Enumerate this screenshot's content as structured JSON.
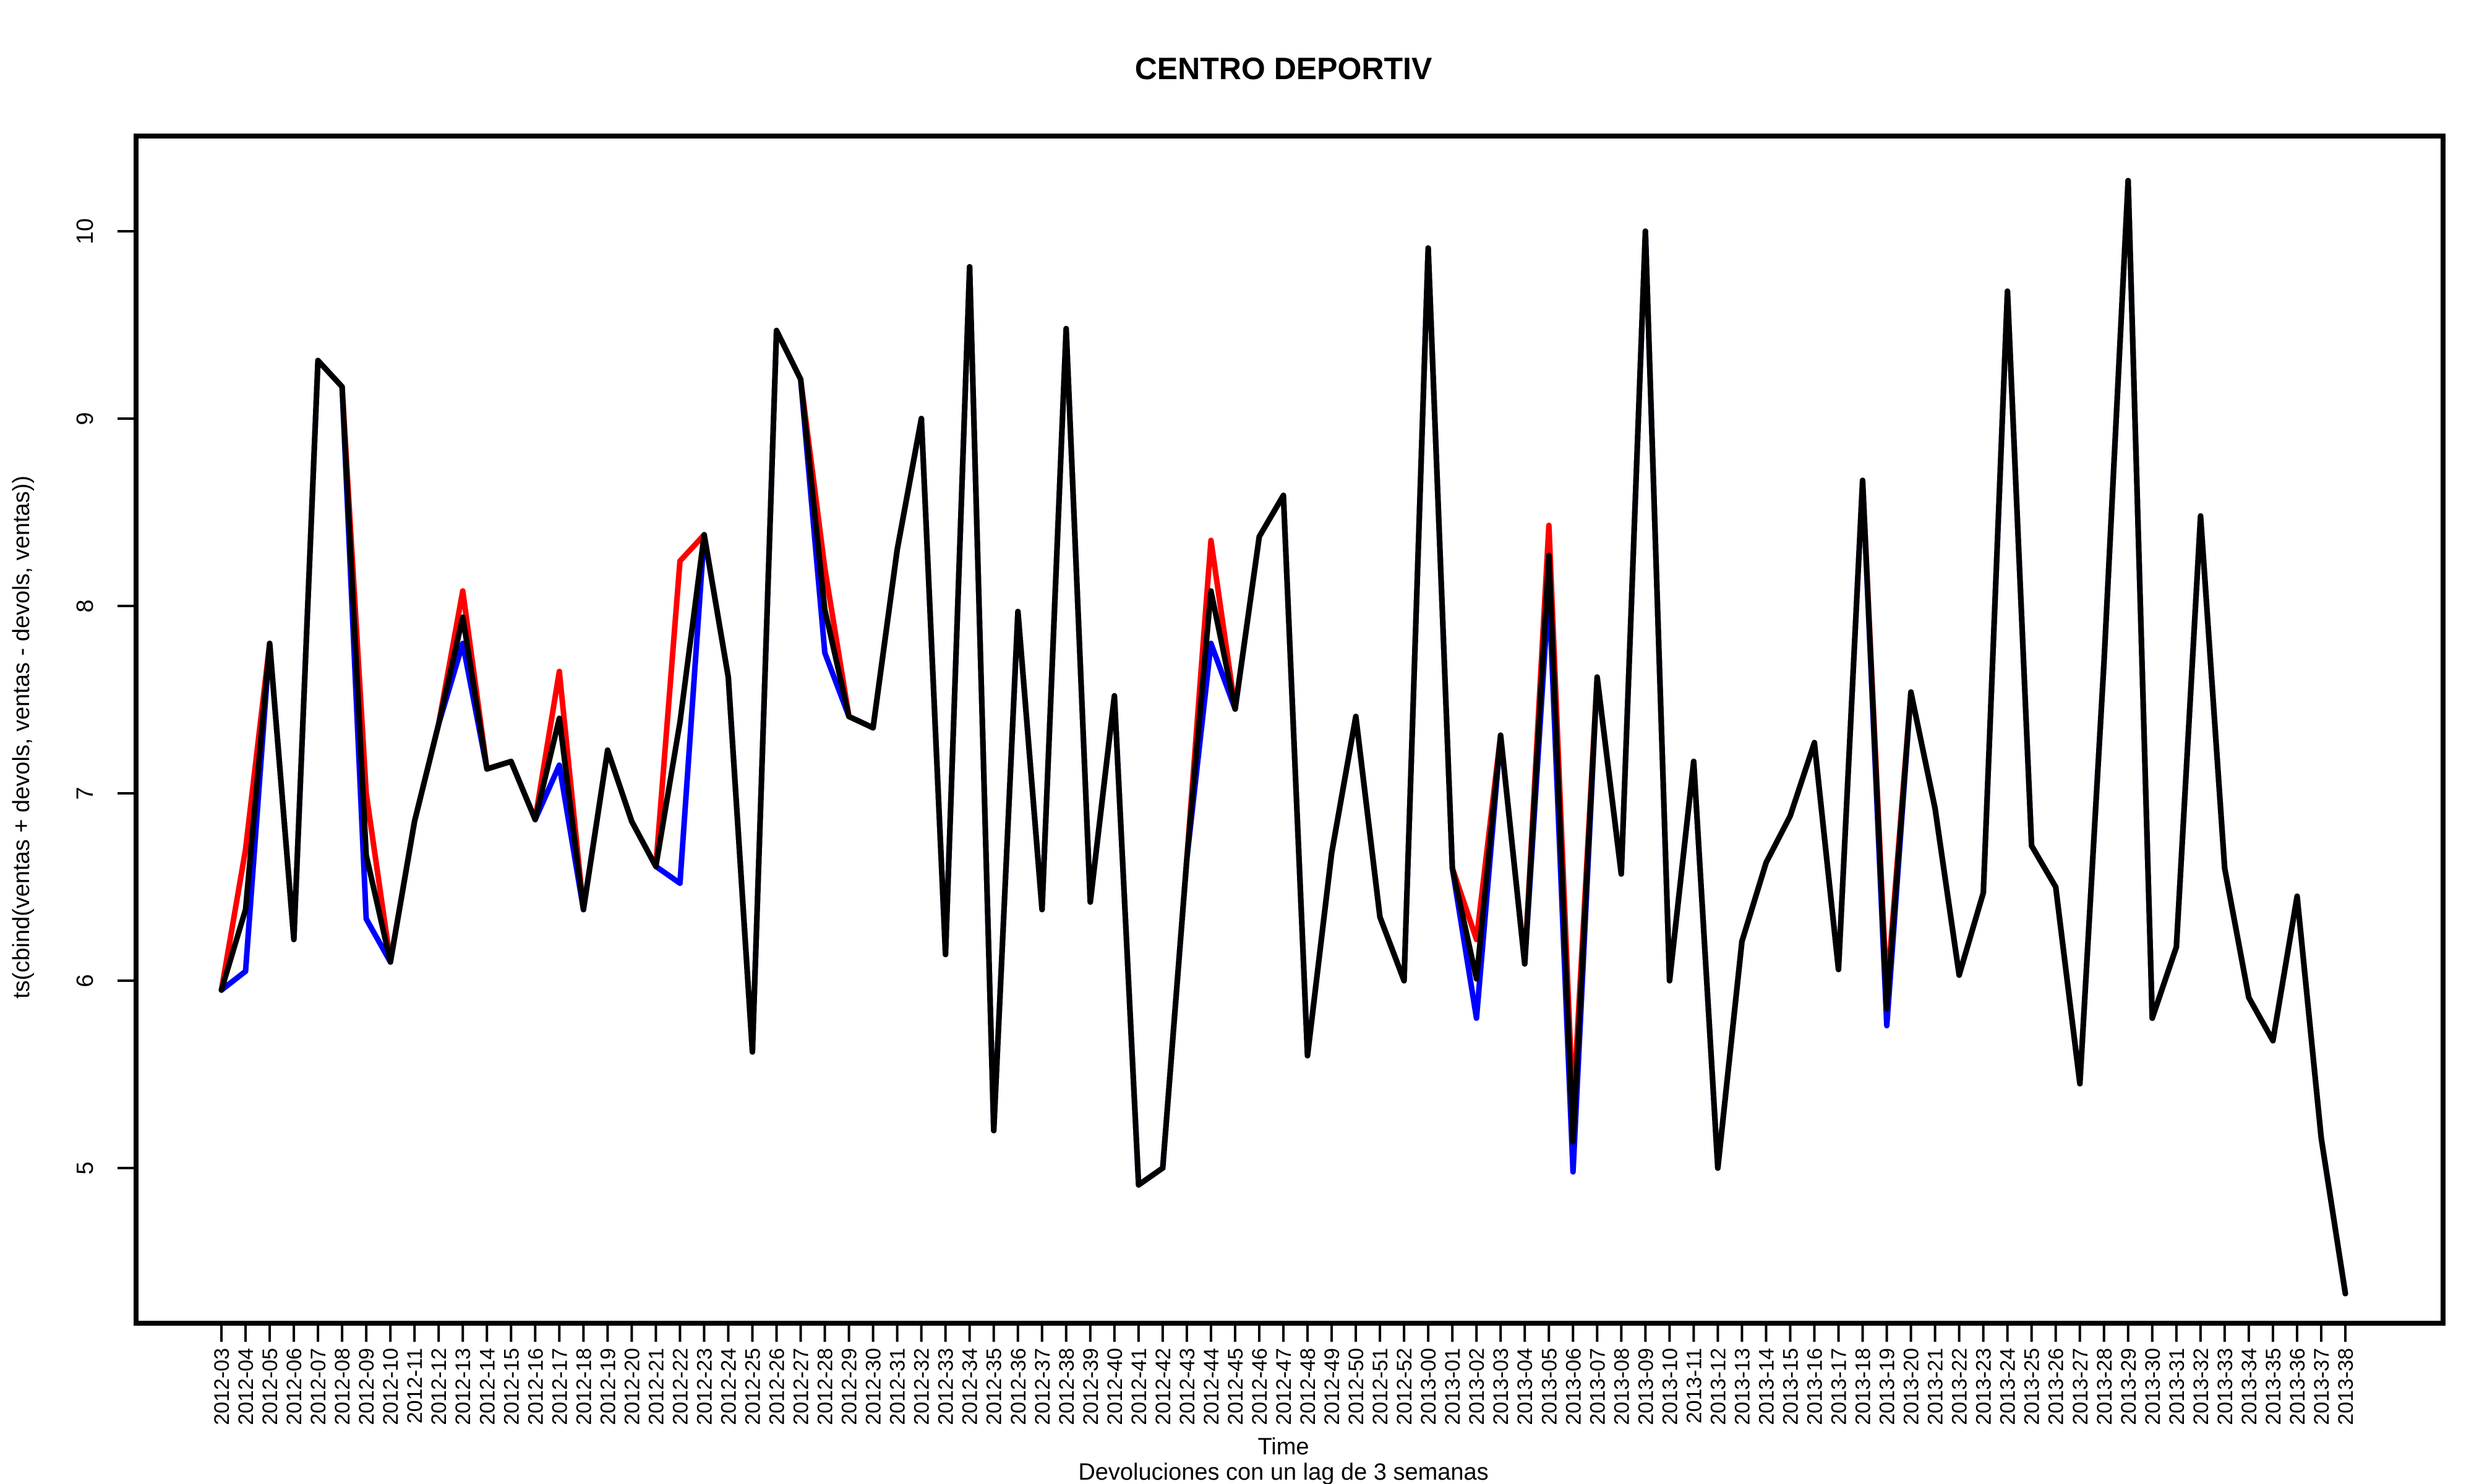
{
  "chart_data": {
    "type": "line",
    "title": "CENTRO DEPORTIV",
    "xlabel": "Time",
    "ylabel": "ts(cbind(ventas + devols, ventas - devols, ventas))",
    "subtitle": "Devoluciones con un lag de 3 semanas",
    "ylim": [
      4.3,
      10.5
    ],
    "yticks": [
      5,
      6,
      7,
      8,
      9,
      10
    ],
    "grid": false,
    "x": [
      "2012-03",
      "2012-04",
      "2012-05",
      "2012-06",
      "2012-07",
      "2012-08",
      "2012-09",
      "2012-10",
      "2012-11",
      "2012-12",
      "2012-13",
      "2012-14",
      "2012-15",
      "2012-16",
      "2012-17",
      "2012-18",
      "2012-19",
      "2012-20",
      "2012-21",
      "2012-22",
      "2012-23",
      "2012-24",
      "2012-25",
      "2012-26",
      "2012-27",
      "2012-28",
      "2012-29",
      "2012-30",
      "2012-31",
      "2012-32",
      "2012-33",
      "2012-34",
      "2012-35",
      "2012-36",
      "2012-37",
      "2012-38",
      "2012-39",
      "2012-40",
      "2012-41",
      "2012-42",
      "2012-43",
      "2012-44",
      "2012-45",
      "2012-46",
      "2012-47",
      "2012-48",
      "2012-49",
      "2012-50",
      "2012-51",
      "2012-52",
      "2013-00",
      "2013-01",
      "2013-02",
      "2013-03",
      "2013-04",
      "2013-05",
      "2013-06",
      "2013-07",
      "2013-08",
      "2013-09",
      "2013-10",
      "2013-11",
      "2013-12",
      "2013-13",
      "2013-14",
      "2013-15",
      "2013-16",
      "2013-17",
      "2013-18",
      "2013-19",
      "2013-20",
      "2013-21",
      "2013-22",
      "2013-23",
      "2013-24",
      "2013-25",
      "2013-26",
      "2013-27",
      "2013-28",
      "2013-29",
      "2013-30",
      "2013-31",
      "2013-32",
      "2013-33",
      "2013-34",
      "2013-35",
      "2013-36",
      "2013-37",
      "2013-38"
    ],
    "series": [
      {
        "color": "#ff0000",
        "values": [
          5.95,
          6.7,
          7.8,
          6.22,
          9.31,
          9.17,
          7.0,
          6.1,
          6.85,
          7.37,
          8.08,
          7.13,
          7.17,
          6.86,
          7.65,
          6.38,
          7.23,
          6.85,
          6.61,
          8.24,
          8.38,
          7.62,
          5.62,
          9.47,
          9.21,
          8.2,
          7.41,
          7.35,
          8.3,
          9.0,
          6.14,
          9.81,
          5.2,
          7.97,
          6.38,
          9.48,
          6.42,
          7.52,
          4.91,
          5.0,
          6.65,
          8.35,
          7.45,
          8.37,
          8.59,
          5.6,
          6.68,
          7.41,
          6.34,
          6.0,
          9.91,
          6.6,
          6.22,
          7.31,
          6.09,
          8.43,
          5.3,
          7.62,
          6.57,
          10.0,
          6.0,
          7.17,
          5.0,
          6.21,
          6.63,
          6.88,
          7.27,
          6.06,
          8.67,
          5.93,
          7.54,
          6.92,
          6.03,
          6.47,
          9.68,
          6.72,
          6.5,
          5.45,
          7.7,
          10.27,
          5.8,
          6.18,
          8.48,
          6.6,
          5.91,
          5.68,
          6.45,
          5.16,
          4.33
        ]
      },
      {
        "color": "#0000ff",
        "values": [
          5.95,
          6.05,
          7.8,
          6.22,
          9.31,
          9.17,
          6.33,
          6.1,
          6.85,
          7.37,
          7.8,
          7.13,
          7.17,
          6.86,
          7.15,
          6.38,
          7.23,
          6.85,
          6.61,
          6.52,
          8.38,
          7.62,
          5.62,
          9.47,
          9.21,
          7.75,
          7.41,
          7.35,
          8.3,
          9.0,
          6.14,
          9.81,
          5.2,
          7.97,
          6.38,
          9.48,
          6.42,
          7.52,
          4.91,
          5.0,
          6.65,
          7.8,
          7.45,
          8.37,
          8.59,
          5.6,
          6.68,
          7.41,
          6.34,
          6.0,
          9.91,
          6.6,
          5.8,
          7.31,
          6.09,
          8.1,
          4.98,
          7.62,
          6.57,
          10.0,
          6.0,
          7.17,
          5.0,
          6.21,
          6.63,
          6.88,
          7.27,
          6.06,
          8.67,
          5.76,
          7.54,
          6.92,
          6.03,
          6.47,
          9.68,
          6.72,
          6.5,
          5.45,
          7.7,
          10.27,
          5.8,
          6.18,
          8.48,
          6.6,
          5.91,
          5.68,
          6.45,
          5.16,
          4.33
        ]
      },
      {
        "color": "#000000",
        "values": [
          5.95,
          6.38,
          7.8,
          6.22,
          9.31,
          9.17,
          6.67,
          6.1,
          6.85,
          7.37,
          7.94,
          7.13,
          7.17,
          6.86,
          7.4,
          6.38,
          7.23,
          6.85,
          6.61,
          7.38,
          8.38,
          7.62,
          5.62,
          9.47,
          9.21,
          7.98,
          7.41,
          7.35,
          8.3,
          9.0,
          6.14,
          9.81,
          5.2,
          7.97,
          6.38,
          9.48,
          6.42,
          7.52,
          4.91,
          5.0,
          6.65,
          8.08,
          7.45,
          8.37,
          8.59,
          5.6,
          6.68,
          7.41,
          6.34,
          6.0,
          9.91,
          6.6,
          6.01,
          7.31,
          6.09,
          8.27,
          5.14,
          7.62,
          6.57,
          10.0,
          6.0,
          7.17,
          5.0,
          6.21,
          6.63,
          6.88,
          7.27,
          6.06,
          8.67,
          5.85,
          7.54,
          6.92,
          6.03,
          6.47,
          9.68,
          6.72,
          6.5,
          5.45,
          7.7,
          10.27,
          5.8,
          6.18,
          8.48,
          6.6,
          5.91,
          5.68,
          6.45,
          5.16,
          4.33
        ]
      }
    ]
  }
}
